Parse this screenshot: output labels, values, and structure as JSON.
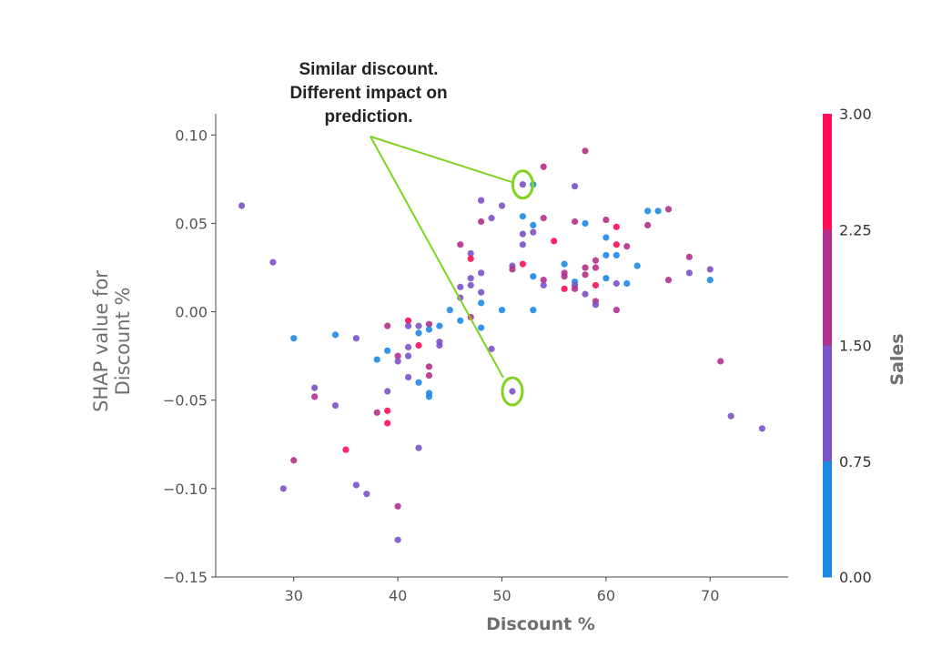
{
  "chart_data": {
    "type": "scatter",
    "title": "",
    "xlabel": "Discount %",
    "ylabel": "SHAP value for\nDiscount %",
    "xlim": [
      22.5,
      77.5
    ],
    "ylim": [
      -0.15,
      0.112
    ],
    "x_ticks": [
      30,
      40,
      50,
      60,
      70
    ],
    "x_tick_labels": [
      "30",
      "40",
      "50",
      "60",
      "70"
    ],
    "y_ticks": [
      0.1,
      0.05,
      0.0,
      -0.05,
      -0.1,
      -0.15
    ],
    "y_tick_labels": [
      "0.10",
      "0.05",
      "0.00",
      "−0.05",
      "−0.10",
      "−0.15"
    ],
    "colorbar": {
      "label": "Sales",
      "range": [
        0,
        3
      ],
      "ticks": [
        3.0,
        2.25,
        1.5,
        0.75,
        0.0
      ],
      "tick_labels": [
        "3.00",
        "2.25",
        "1.50",
        "0.75",
        "0.00"
      ],
      "colors": [
        "#1e88e5",
        "#7b52c7",
        "#b3318c",
        "#ff0d57"
      ]
    },
    "annotation": {
      "text": "Similar discount.\nDifferent impact on\nprediction.",
      "targets": [
        [
          52,
          0.072
        ],
        [
          51,
          -0.045
        ]
      ]
    },
    "grid": false,
    "points": [
      [
        25,
        0.06,
        1.0
      ],
      [
        28,
        0.028,
        1.0
      ],
      [
        29,
        -0.1,
        1.0
      ],
      [
        30,
        -0.015,
        0.5
      ],
      [
        30,
        -0.084,
        1.9
      ],
      [
        32,
        -0.043,
        1.0
      ],
      [
        32,
        -0.048,
        1.8
      ],
      [
        34,
        -0.013,
        0.5
      ],
      [
        34,
        -0.053,
        1.0
      ],
      [
        35,
        -0.078,
        2.6
      ],
      [
        36,
        -0.015,
        1.0
      ],
      [
        36,
        -0.098,
        1.0
      ],
      [
        37,
        -0.103,
        1.0
      ],
      [
        38,
        -0.027,
        0.5
      ],
      [
        38,
        -0.057,
        1.9
      ],
      [
        39,
        -0.008,
        1.9
      ],
      [
        39,
        -0.022,
        0.5
      ],
      [
        39,
        -0.045,
        1.0
      ],
      [
        39,
        -0.056,
        2.6
      ],
      [
        39,
        -0.063,
        2.6
      ],
      [
        40,
        -0.025,
        1.9
      ],
      [
        40,
        -0.028,
        1.0
      ],
      [
        40,
        -0.11,
        1.9
      ],
      [
        40,
        -0.129,
        1.0
      ],
      [
        41,
        -0.005,
        2.6
      ],
      [
        41,
        -0.008,
        1.0
      ],
      [
        41,
        -0.02,
        1.0
      ],
      [
        41,
        -0.025,
        1.0
      ],
      [
        41,
        -0.037,
        1.0
      ],
      [
        42,
        -0.008,
        1.0
      ],
      [
        42,
        -0.012,
        0.5
      ],
      [
        42,
        -0.019,
        2.6
      ],
      [
        42,
        -0.04,
        0.5
      ],
      [
        42,
        -0.077,
        1.0
      ],
      [
        43,
        -0.007,
        1.9
      ],
      [
        43,
        -0.01,
        0.5
      ],
      [
        43,
        -0.031,
        1.9
      ],
      [
        43,
        -0.036,
        1.9
      ],
      [
        43,
        -0.046,
        0.5
      ],
      [
        43,
        -0.048,
        0.5
      ],
      [
        44,
        -0.008,
        0.5
      ],
      [
        44,
        -0.017,
        1.0
      ],
      [
        44,
        -0.019,
        1.0
      ],
      [
        45,
        0.001,
        0.5
      ],
      [
        46,
        0.038,
        1.9
      ],
      [
        46,
        0.014,
        1.0
      ],
      [
        46,
        0.008,
        1.0
      ],
      [
        46,
        -0.005,
        0.5
      ],
      [
        47,
        0.033,
        1.0
      ],
      [
        47,
        0.03,
        2.6
      ],
      [
        47,
        0.019,
        1.0
      ],
      [
        47,
        0.015,
        1.0
      ],
      [
        47,
        -0.003,
        1.9
      ],
      [
        48,
        0.063,
        1.0
      ],
      [
        48,
        0.051,
        1.9
      ],
      [
        48,
        0.022,
        1.0
      ],
      [
        48,
        0.011,
        1.0
      ],
      [
        48,
        0.005,
        0.5
      ],
      [
        48,
        -0.009,
        0.5
      ],
      [
        49,
        0.053,
        1.0
      ],
      [
        49,
        -0.021,
        1.0
      ],
      [
        50,
        0.06,
        1.0
      ],
      [
        50,
        0.001,
        0.5
      ],
      [
        51,
        0.026,
        1.0
      ],
      [
        51,
        0.024,
        1.9
      ],
      [
        51,
        -0.045,
        1.0
      ],
      [
        52,
        0.072,
        1.0
      ],
      [
        52,
        0.054,
        0.5
      ],
      [
        52,
        0.044,
        1.0
      ],
      [
        52,
        0.038,
        1.0
      ],
      [
        52,
        0.027,
        2.6
      ],
      [
        53,
        0.072,
        0.5
      ],
      [
        53,
        0.049,
        0.5
      ],
      [
        53,
        0.045,
        1.0
      ],
      [
        53,
        0.02,
        0.5
      ],
      [
        53,
        0.001,
        0.5
      ],
      [
        54,
        0.082,
        1.9
      ],
      [
        54,
        0.053,
        1.9
      ],
      [
        54,
        0.018,
        1.9
      ],
      [
        54,
        0.015,
        1.0
      ],
      [
        55,
        0.04,
        2.6
      ],
      [
        56,
        0.027,
        0.5
      ],
      [
        56,
        0.022,
        1.9
      ],
      [
        56,
        0.02,
        1.9
      ],
      [
        56,
        0.013,
        2.6
      ],
      [
        57,
        0.071,
        1.0
      ],
      [
        57,
        0.051,
        1.9
      ],
      [
        57,
        0.017,
        0.5
      ],
      [
        57,
        0.015,
        1.0
      ],
      [
        57,
        0.013,
        1.9
      ],
      [
        58,
        0.091,
        1.9
      ],
      [
        58,
        0.05,
        0.5
      ],
      [
        58,
        0.025,
        1.9
      ],
      [
        58,
        0.021,
        1.9
      ],
      [
        58,
        0.01,
        1.0
      ],
      [
        59,
        0.029,
        1.9
      ],
      [
        59,
        0.025,
        1.9
      ],
      [
        59,
        0.015,
        2.6
      ],
      [
        59,
        0.006,
        1.9
      ],
      [
        59,
        0.004,
        1.0
      ],
      [
        60,
        0.052,
        1.9
      ],
      [
        60,
        0.042,
        0.5
      ],
      [
        60,
        0.032,
        0.5
      ],
      [
        60,
        0.019,
        0.5
      ],
      [
        61,
        0.048,
        2.6
      ],
      [
        61,
        0.038,
        2.6
      ],
      [
        61,
        0.032,
        0.5
      ],
      [
        61,
        0.016,
        1.0
      ],
      [
        61,
        0.001,
        1.9
      ],
      [
        62,
        0.037,
        1.9
      ],
      [
        62,
        0.016,
        0.5
      ],
      [
        63,
        0.026,
        0.5
      ],
      [
        64,
        0.057,
        0.5
      ],
      [
        64,
        0.049,
        1.9
      ],
      [
        65,
        0.057,
        0.5
      ],
      [
        66,
        0.058,
        1.9
      ],
      [
        66,
        0.018,
        1.9
      ],
      [
        68,
        0.031,
        1.9
      ],
      [
        68,
        0.022,
        1.0
      ],
      [
        70,
        0.024,
        1.0
      ],
      [
        70,
        0.018,
        0.5
      ],
      [
        71,
        -0.028,
        1.9
      ],
      [
        72,
        -0.059,
        1.0
      ],
      [
        75,
        -0.066,
        1.0
      ]
    ]
  }
}
